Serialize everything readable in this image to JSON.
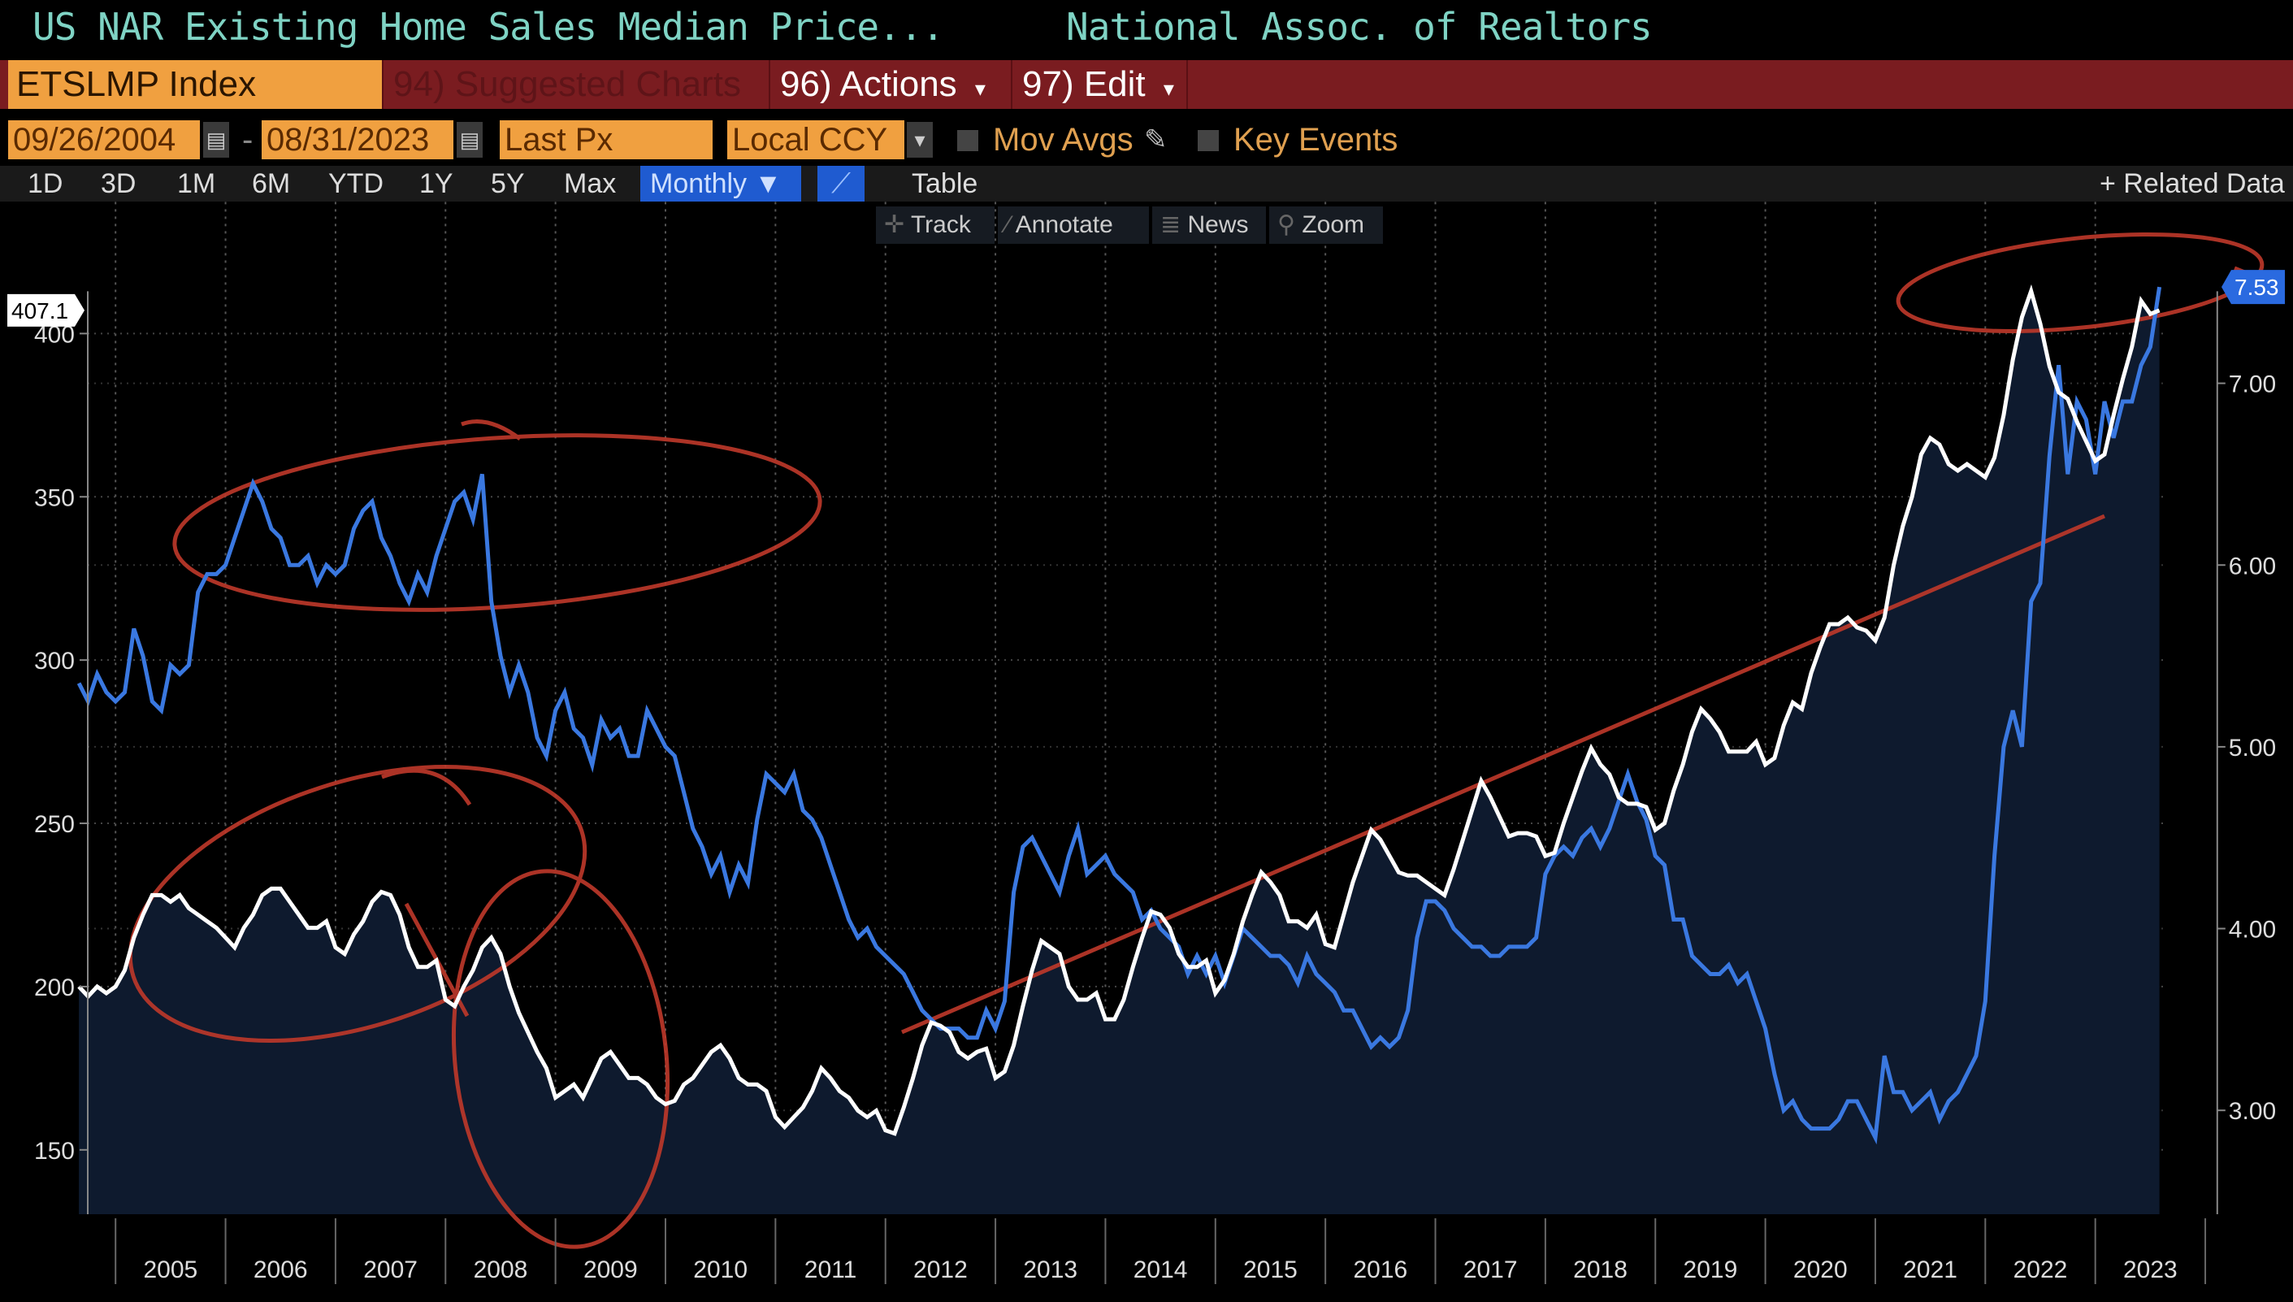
{
  "header": {
    "title": "US NAR Existing Home Sales Median Price...",
    "source": "National Assoc. of Realtors"
  },
  "toolbar": {
    "ticker": "ETSLMP Index",
    "suggested_charts": "94) Suggested Charts",
    "actions": "96) Actions",
    "edit": "97) Edit",
    "dropdown_glyph": "▾"
  },
  "settings": {
    "start_date": "09/26/2004",
    "date_separator": "-",
    "end_date": "08/31/2023",
    "price_field": "Last Px",
    "currency": "Local CCY",
    "mov_avgs": "Mov Avgs",
    "key_events": "Key Events"
  },
  "periods": [
    "1D",
    "3D",
    "1M",
    "6M",
    "YTD",
    "1Y",
    "5Y",
    "Max"
  ],
  "frequency": "Monthly ▼",
  "table_label": "Table",
  "related_data": "+ Related Data",
  "chart_tools": [
    "Track",
    "Annotate",
    "News",
    "Zoom"
  ],
  "colors": {
    "price_line": "#ffffff",
    "rate_line": "#3a78e0",
    "area_fill": "#0e1a2e",
    "annotation": "#c0392b",
    "accent_blue": "#1f5bd0",
    "orange": "#f0a040"
  },
  "chart_data": {
    "type": "line",
    "start_month": "2004-09",
    "frequency": "monthly",
    "x_tick_labels": [
      "2005",
      "2006",
      "2007",
      "2008",
      "2009",
      "2010",
      "2011",
      "2012",
      "2013",
      "2014",
      "2015",
      "2016",
      "2017",
      "2018",
      "2019",
      "2020",
      "2021",
      "2022",
      "2023"
    ],
    "left_axis": {
      "ticks": [
        "150",
        "200",
        "250",
        "300",
        "350",
        "400"
      ],
      "range": [
        130,
        420
      ]
    },
    "right_axis": {
      "ticks": [
        "3.00",
        "4.00",
        "5.00",
        "6.00",
        "7.00"
      ],
      "range": [
        2.4,
        7.8
      ]
    },
    "last_values": {
      "left": "407.1",
      "right": "7.53"
    },
    "grid": true,
    "series": [
      {
        "axis": "left",
        "style": "area",
        "values": [
          200,
          197,
          200,
          198,
          200,
          205,
          215,
          222,
          228,
          228,
          226,
          228,
          224,
          222,
          220,
          218,
          215,
          212,
          218,
          222,
          228,
          230,
          230,
          226,
          222,
          218,
          218,
          220,
          212,
          210,
          216,
          220,
          226,
          229,
          228,
          222,
          212,
          206,
          206,
          208,
          196,
          194,
          200,
          205,
          212,
          215,
          210,
          200,
          192,
          186,
          180,
          175,
          166,
          168,
          170,
          166,
          172,
          178,
          180,
          176,
          172,
          172,
          170,
          166,
          164,
          165,
          170,
          172,
          176,
          180,
          182,
          178,
          172,
          170,
          170,
          168,
          160,
          157,
          160,
          163,
          168,
          175,
          172,
          168,
          166,
          162,
          160,
          162,
          156,
          155,
          163,
          172,
          182,
          189,
          188,
          186,
          180,
          178,
          180,
          181,
          172,
          174,
          182,
          194,
          205,
          214,
          212,
          210,
          200,
          196,
          196,
          198,
          190,
          190,
          196,
          206,
          215,
          223,
          222,
          218,
          210,
          206,
          206,
          208,
          198,
          202,
          210,
          220,
          228,
          235,
          232,
          228,
          220,
          220,
          218,
          222,
          213,
          212,
          222,
          232,
          240,
          248,
          245,
          240,
          235,
          234,
          234,
          232,
          230,
          228,
          236,
          245,
          254,
          263,
          258,
          252,
          246,
          247,
          247,
          246,
          240,
          241,
          250,
          258,
          266,
          273,
          268,
          265,
          258,
          256,
          256,
          255,
          248,
          250,
          260,
          268,
          278,
          285,
          282,
          278,
          272,
          272,
          272,
          275,
          268,
          270,
          280,
          287,
          285,
          296,
          304,
          311,
          311,
          313,
          310,
          309,
          306,
          313,
          329,
          341,
          350,
          363,
          368,
          366,
          360,
          358,
          360,
          358,
          356,
          362,
          375,
          392,
          405,
          413,
          403,
          390,
          382,
          380,
          373,
          367,
          361,
          363,
          375,
          386,
          396,
          410,
          406,
          407.1
        ]
      },
      {
        "axis": "right",
        "style": "line",
        "values": [
          5.35,
          5.25,
          5.4,
          5.3,
          5.25,
          5.3,
          5.65,
          5.5,
          5.25,
          5.2,
          5.45,
          5.4,
          5.45,
          5.85,
          5.95,
          5.95,
          6.0,
          6.15,
          6.3,
          6.45,
          6.35,
          6.2,
          6.15,
          6.0,
          6.0,
          6.05,
          5.9,
          6.0,
          5.95,
          6.0,
          6.2,
          6.3,
          6.35,
          6.15,
          6.05,
          5.9,
          5.8,
          5.95,
          5.85,
          6.05,
          6.2,
          6.35,
          6.4,
          6.25,
          6.5,
          5.8,
          5.5,
          5.3,
          5.45,
          5.3,
          5.05,
          4.95,
          5.2,
          5.3,
          5.1,
          5.05,
          4.9,
          5.15,
          5.05,
          5.1,
          4.95,
          4.95,
          5.2,
          5.1,
          5.0,
          4.95,
          4.75,
          4.55,
          4.45,
          4.3,
          4.4,
          4.2,
          4.35,
          4.25,
          4.6,
          4.85,
          4.8,
          4.75,
          4.85,
          4.65,
          4.6,
          4.5,
          4.35,
          4.2,
          4.05,
          3.95,
          4.0,
          3.9,
          3.85,
          3.8,
          3.75,
          3.65,
          3.55,
          3.5,
          3.45,
          3.45,
          3.45,
          3.4,
          3.4,
          3.55,
          3.45,
          3.6,
          4.2,
          4.45,
          4.5,
          4.4,
          4.3,
          4.2,
          4.4,
          4.55,
          4.3,
          4.35,
          4.4,
          4.3,
          4.25,
          4.2,
          4.05,
          4.1,
          4.0,
          3.95,
          3.9,
          3.75,
          3.85,
          3.75,
          3.85,
          3.7,
          3.85,
          4.0,
          3.95,
          3.9,
          3.85,
          3.85,
          3.8,
          3.7,
          3.85,
          3.75,
          3.7,
          3.65,
          3.55,
          3.55,
          3.45,
          3.35,
          3.4,
          3.35,
          3.4,
          3.55,
          3.95,
          4.15,
          4.15,
          4.1,
          4.0,
          3.95,
          3.9,
          3.9,
          3.85,
          3.85,
          3.9,
          3.9,
          3.9,
          3.95,
          4.3,
          4.4,
          4.45,
          4.4,
          4.5,
          4.55,
          4.45,
          4.55,
          4.7,
          4.85,
          4.7,
          4.6,
          4.4,
          4.35,
          4.05,
          4.05,
          3.85,
          3.8,
          3.75,
          3.75,
          3.8,
          3.7,
          3.75,
          3.6,
          3.45,
          3.2,
          3.0,
          3.05,
          2.95,
          2.9,
          2.9,
          2.9,
          2.95,
          3.05,
          3.05,
          2.95,
          2.85,
          3.3,
          3.1,
          3.1,
          3.0,
          3.05,
          3.1,
          2.95,
          3.05,
          3.1,
          3.2,
          3.3,
          3.6,
          4.4,
          5.0,
          5.2,
          5.0,
          5.8,
          5.9,
          6.6,
          7.1,
          6.5,
          6.9,
          6.8,
          6.5,
          6.9,
          6.7,
          6.9,
          6.9,
          7.1,
          7.2,
          7.53
        ]
      }
    ]
  }
}
